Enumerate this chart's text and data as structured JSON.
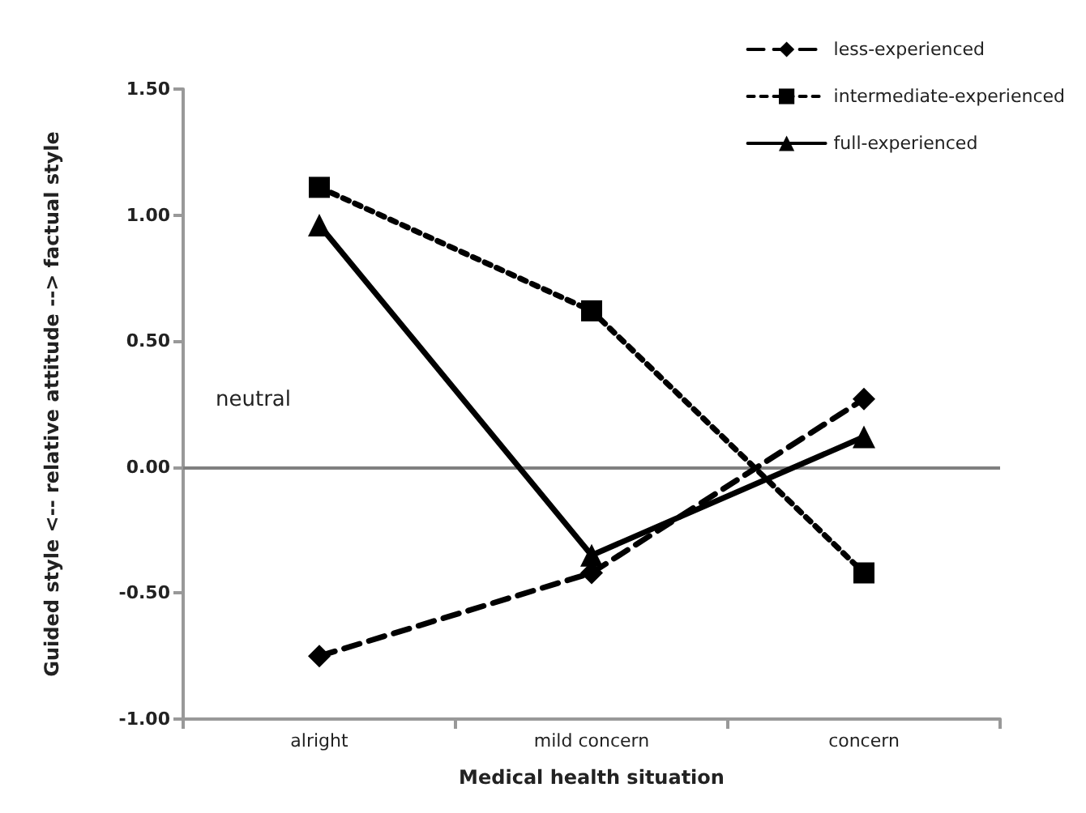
{
  "chart_data": {
    "type": "line",
    "xlabel": "Medical health situation",
    "ylabel": "Guided style <-- relative attitude --> factual style",
    "categories": [
      "alright",
      "mild concern",
      "concern"
    ],
    "series": [
      {
        "name": "less-experienced",
        "color": "#000000",
        "values": [
          -0.75,
          -0.42,
          0.27
        ],
        "marker": "diamond",
        "line_style": "dashed"
      },
      {
        "name": "intermediate-experienced",
        "color": "#000000",
        "values": [
          1.11,
          0.62,
          -0.42
        ],
        "marker": "square",
        "line_style": "dotted"
      },
      {
        "name": "full-experienced",
        "color": "#000000",
        "values": [
          0.96,
          -0.35,
          0.12
        ],
        "marker": "triangle",
        "line_style": "solid"
      }
    ],
    "ylim": [
      -1,
      1.5
    ],
    "yticks": [
      {
        "value": -1,
        "label": "-1.00"
      },
      {
        "value": -0.5,
        "label": "-0.50"
      },
      {
        "value": 0,
        "label": "0.00"
      },
      {
        "value": 0.5,
        "label": "0.50"
      },
      {
        "value": 1,
        "label": "1.00"
      },
      {
        "value": 1.5,
        "label": "1.50"
      }
    ],
    "ref_lines": [
      {
        "axis": "y",
        "value": 0,
        "label": "neutral",
        "color": "#808080",
        "line_style": "solid"
      }
    ],
    "grid": false,
    "legend": "top right"
  }
}
